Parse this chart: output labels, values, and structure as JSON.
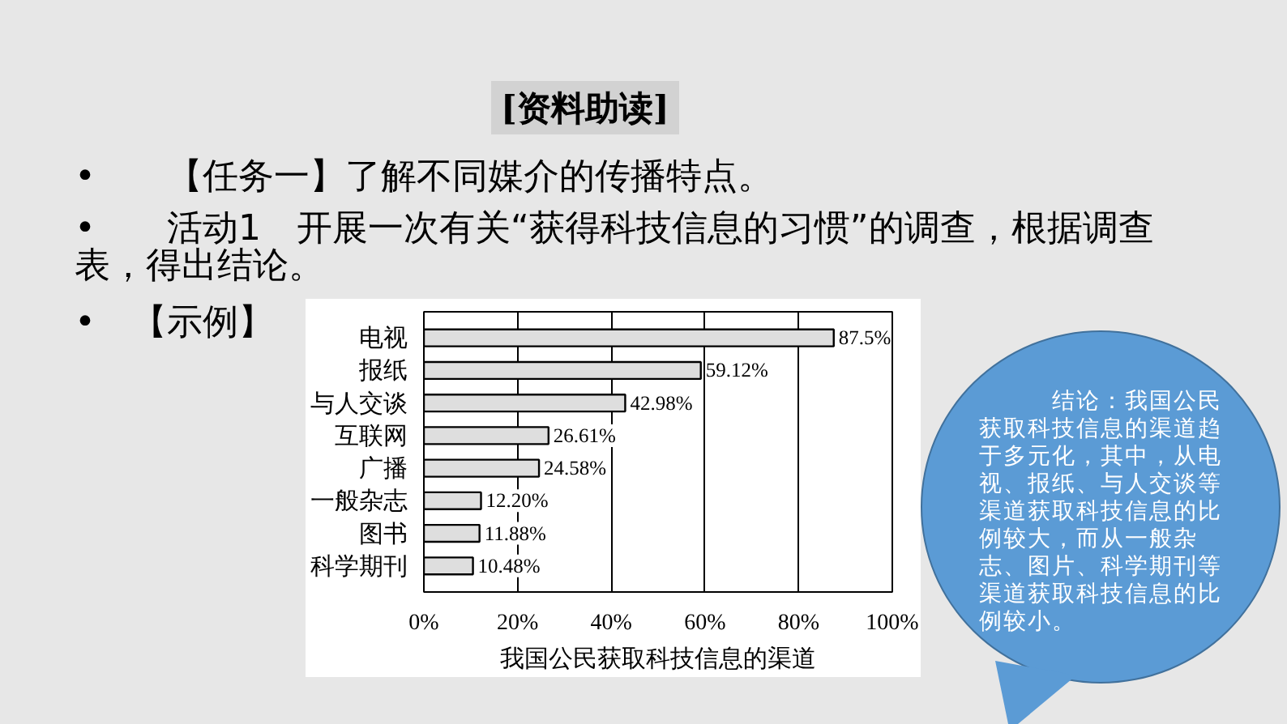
{
  "chart_data": {
    "type": "bar",
    "orientation": "horizontal",
    "title": "[资料助读]",
    "xlabel": "我国公民获取科技信息的渠道",
    "categories": [
      "电视",
      "报纸",
      "与人交谈",
      "互联网",
      "广播",
      "一般杂志",
      "图书",
      "科学期刊"
    ],
    "values": [
      87.5,
      59.12,
      42.98,
      26.61,
      24.58,
      12.2,
      11.88,
      10.48
    ],
    "value_labels": [
      "87.5%",
      "59.12%",
      "42.98%",
      "26.61%",
      "24.58%",
      "12.20%",
      "11.88%",
      "10.48%"
    ],
    "color": "#dedede",
    "xlim": [
      0,
      100
    ],
    "xticks": [
      {
        "value": 0,
        "label": "0%"
      },
      {
        "value": 20,
        "label": "20%"
      },
      {
        "value": 40,
        "label": "40%"
      },
      {
        "value": 60,
        "label": "60%"
      },
      {
        "value": 80,
        "label": "80%"
      },
      {
        "value": 100,
        "label": "100%"
      }
    ],
    "grid": "x",
    "annotations": [
      "•　　【任务一】了解不同媒介的传播特点。",
      "•　　活动1　开展一次有关“获得科技信息的习惯”的调查，根据调查表，得出结论。",
      "•　【示例】",
      "结论：我国公民获取科技信息的渠道趋于多元化，其中，从电视、报纸、与人交谈等渠道获取科技信息的比例较大，而从一般杂志、图片、科学期刊等渠道获取科技信息的比例较小。"
    ]
  }
}
